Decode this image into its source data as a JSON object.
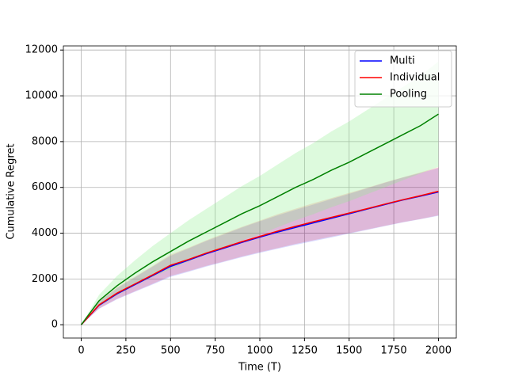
{
  "chart_data": {
    "type": "line",
    "x_label": "Time (T)",
    "y_label": "Cumulative Regret",
    "x": [
      0,
      100,
      200,
      300,
      400,
      500,
      600,
      700,
      800,
      900,
      1000,
      1100,
      1200,
      1300,
      1400,
      1500,
      1600,
      1700,
      1800,
      1900,
      2000
    ],
    "series": [
      {
        "name": "Multi",
        "color": "#0000ff",
        "band_color": "#0000ff",
        "values": [
          0,
          850,
          1350,
          1750,
          2150,
          2550,
          2820,
          3100,
          3350,
          3600,
          3830,
          4050,
          4250,
          4450,
          4650,
          4850,
          5050,
          5250,
          5450,
          5620,
          5800
        ],
        "lower": [
          0,
          700,
          1110,
          1440,
          1760,
          2090,
          2310,
          2540,
          2750,
          2950,
          3140,
          3320,
          3490,
          3650,
          3810,
          3980,
          4140,
          4310,
          4470,
          4610,
          4760
        ],
        "upper": [
          0,
          1000,
          1590,
          2070,
          2540,
          3010,
          3330,
          3660,
          3950,
          4250,
          4520,
          4780,
          5020,
          5250,
          5490,
          5720,
          5960,
          6200,
          6430,
          6630,
          6850
        ]
      },
      {
        "name": "Individual",
        "color": "#ff0000",
        "band_color": "#ff0000",
        "values": [
          0,
          870,
          1380,
          1780,
          2180,
          2600,
          2850,
          3130,
          3380,
          3630,
          3860,
          4090,
          4300,
          4500,
          4690,
          4880,
          5070,
          5270,
          5460,
          5640,
          5830
        ],
        "lower": [
          0,
          710,
          1130,
          1460,
          1790,
          2130,
          2340,
          2570,
          2770,
          2980,
          3170,
          3350,
          3530,
          3690,
          3850,
          4000,
          4160,
          4320,
          4480,
          4620,
          4780
        ],
        "upper": [
          0,
          1030,
          1630,
          2100,
          2570,
          3070,
          3360,
          3690,
          3990,
          4280,
          4550,
          4830,
          5070,
          5310,
          5530,
          5760,
          5980,
          6220,
          6440,
          6660,
          6880
        ]
      },
      {
        "name": "Pooling",
        "color": "#008000",
        "band_color": "#90ee90",
        "values": [
          0,
          1050,
          1700,
          2250,
          2750,
          3200,
          3650,
          4050,
          4450,
          4850,
          5200,
          5600,
          6000,
          6350,
          6750,
          7100,
          7500,
          7900,
          8300,
          8700,
          9200
        ],
        "lower": [
          0,
          800,
          1290,
          1710,
          2090,
          2430,
          2770,
          3080,
          3380,
          3690,
          3950,
          4260,
          4560,
          4830,
          5130,
          5400,
          5700,
          6000,
          6310,
          6610,
          6900
        ],
        "upper": [
          0,
          1310,
          2130,
          2810,
          3440,
          4000,
          4560,
          5060,
          5560,
          6060,
          6500,
          7000,
          7500,
          7940,
          8440,
          8880,
          9380,
          9880,
          10380,
          10880,
          11500
        ]
      }
    ],
    "xlim": [
      -100,
      2100
    ],
    "xticks": [
      0,
      250,
      500,
      750,
      1000,
      1250,
      1500,
      1750,
      2000
    ],
    "ylim": [
      -580,
      12180
    ],
    "yticks": [
      0,
      2000,
      4000,
      6000,
      8000,
      10000,
      12000
    ],
    "grid": true,
    "legend": "upper right"
  }
}
